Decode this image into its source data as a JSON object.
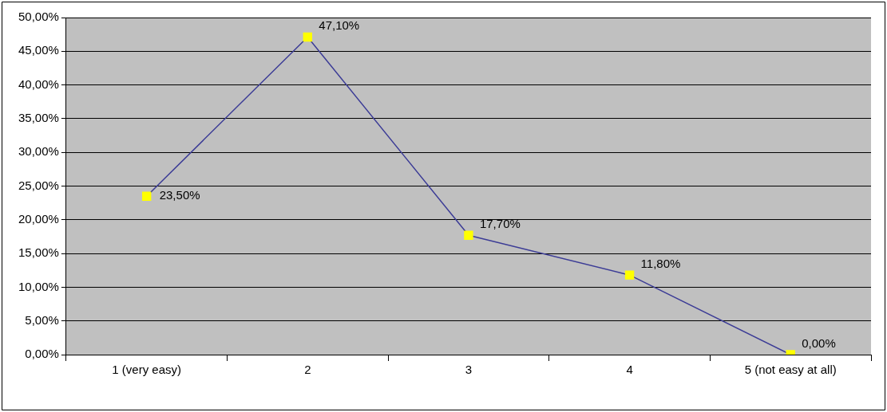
{
  "chart_data": {
    "type": "line",
    "categories": [
      "1 (very easy)",
      "2",
      "3",
      "4",
      "5 (not easy at all)"
    ],
    "series": [
      {
        "color": "#3c3c96",
        "colors": [
          "#ffff00",
          "#ffff00",
          "#ffff00",
          "#ffff00",
          "#ffff00"
        ],
        "values": [
          23.5,
          47.1,
          17.7,
          11.8,
          0
        ],
        "value_labels": [
          "23,50%",
          "47,10%",
          "17,70%",
          "11,80%",
          "0,00%"
        ]
      }
    ],
    "ylim": [
      0,
      50
    ],
    "yticks": [
      {
        "value": 0,
        "label": "0,00%"
      },
      {
        "value": 5,
        "label": "5,00%"
      },
      {
        "value": 10,
        "label": "10,00%"
      },
      {
        "value": 15,
        "label": "15,00%"
      },
      {
        "value": 20,
        "label": "20,00%"
      },
      {
        "value": 25,
        "label": "25,00%"
      },
      {
        "value": 30,
        "label": "30,00%"
      },
      {
        "value": 35,
        "label": "35,00%"
      },
      {
        "value": 40,
        "label": "40,00%"
      },
      {
        "value": 45,
        "label": "45,00%"
      },
      {
        "value": 50,
        "label": "50,00%"
      }
    ],
    "grid": "y",
    "legend": false,
    "marker": "square",
    "line_style": "solid"
  }
}
